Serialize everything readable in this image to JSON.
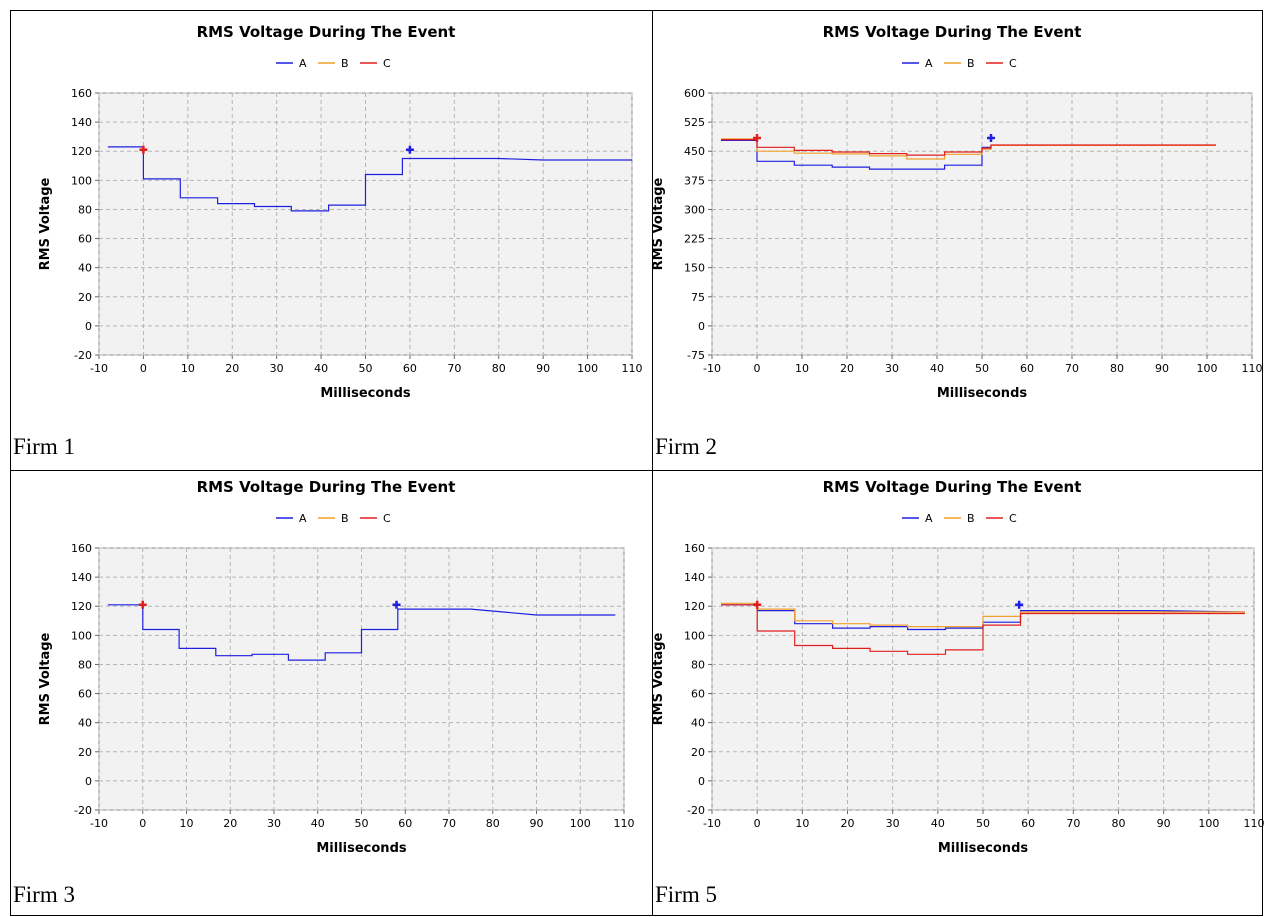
{
  "panels": [
    {
      "label": "Firm 1",
      "chart_data": {
        "type": "line",
        "title": "RMS Voltage During The Event",
        "xlabel": "Milliseconds",
        "ylabel": "RMS Voltage",
        "xlim": [
          -10,
          110
        ],
        "ylim": [
          -20,
          160
        ],
        "xticks": [
          -10,
          0,
          10,
          20,
          30,
          40,
          50,
          60,
          70,
          80,
          90,
          100,
          110
        ],
        "yticks": [
          -20,
          0,
          20,
          40,
          60,
          80,
          100,
          120,
          140,
          160
        ],
        "legend": [
          "A",
          "B",
          "C"
        ],
        "legend_colors": [
          "#1f1fe0",
          "#f2a12c",
          "#e01f1f"
        ],
        "grid": true,
        "legend_position": "top",
        "markers": [
          {
            "x": 0,
            "y": 121,
            "color": "#e01f1f"
          },
          {
            "x": 60,
            "y": 121,
            "color": "#1f1fe0"
          }
        ],
        "series": [
          {
            "name": "A",
            "color": "#1f1fe0",
            "points": [
              [
                -8,
                123
              ],
              [
                0,
                123
              ],
              [
                0,
                101
              ],
              [
                8.3,
                101
              ],
              [
                8.3,
                88
              ],
              [
                16.7,
                88
              ],
              [
                16.7,
                84
              ],
              [
                25,
                84
              ],
              [
                25,
                82
              ],
              [
                33.3,
                82
              ],
              [
                33.3,
                79
              ],
              [
                41.7,
                79
              ],
              [
                41.7,
                83
              ],
              [
                50,
                83
              ],
              [
                50,
                104
              ],
              [
                58.3,
                104
              ],
              [
                58.3,
                115
              ],
              [
                70,
                115
              ],
              [
                80,
                115
              ],
              [
                90,
                114
              ],
              [
                110,
                114
              ]
            ]
          }
        ]
      }
    },
    {
      "label": "Firm 2",
      "chart_data": {
        "type": "line",
        "title": "RMS Voltage During The Event",
        "xlabel": "Milliseconds",
        "ylabel": "RMS Voltage",
        "xlim": [
          -10,
          110
        ],
        "ylim": [
          -75,
          600
        ],
        "xticks": [
          -10,
          0,
          10,
          20,
          30,
          40,
          50,
          60,
          70,
          80,
          90,
          100,
          110
        ],
        "yticks": [
          -75,
          0,
          75,
          150,
          225,
          300,
          375,
          450,
          525,
          600
        ],
        "legend": [
          "A",
          "B",
          "C"
        ],
        "legend_colors": [
          "#1f1fe0",
          "#f2a12c",
          "#e01f1f"
        ],
        "grid": true,
        "legend_position": "top",
        "markers": [
          {
            "x": 0,
            "y": 484,
            "color": "#e01f1f"
          },
          {
            "x": 52,
            "y": 484,
            "color": "#1f1fe0"
          }
        ],
        "series": [
          {
            "name": "A",
            "color": "#1f1fe0",
            "points": [
              [
                -8,
                478
              ],
              [
                0,
                478
              ],
              [
                0,
                424
              ],
              [
                8.3,
                424
              ],
              [
                8.3,
                414
              ],
              [
                16.7,
                414
              ],
              [
                16.7,
                409
              ],
              [
                25,
                409
              ],
              [
                25,
                404
              ],
              [
                33.3,
                404
              ],
              [
                33.3,
                404
              ],
              [
                41.7,
                404
              ],
              [
                41.7,
                414
              ],
              [
                50,
                414
              ],
              [
                50,
                460
              ],
              [
                52,
                460
              ],
              [
                52,
                465
              ],
              [
                102,
                465
              ]
            ]
          },
          {
            "name": "B",
            "color": "#f2a12c",
            "points": [
              [
                -8,
                482
              ],
              [
                0,
                482
              ],
              [
                0,
                450
              ],
              [
                8.3,
                450
              ],
              [
                8.3,
                445
              ],
              [
                16.7,
                445
              ],
              [
                16.7,
                443
              ],
              [
                25,
                443
              ],
              [
                25,
                438
              ],
              [
                33.3,
                438
              ],
              [
                33.3,
                430
              ],
              [
                41.7,
                430
              ],
              [
                41.7,
                442
              ],
              [
                50,
                442
              ],
              [
                50,
                455
              ],
              [
                52,
                455
              ],
              [
                52,
                465
              ],
              [
                102,
                465
              ]
            ]
          },
          {
            "name": "C",
            "color": "#e01f1f",
            "points": [
              [
                -8,
                480
              ],
              [
                0,
                480
              ],
              [
                0,
                460
              ],
              [
                8.3,
                460
              ],
              [
                8.3,
                452
              ],
              [
                16.7,
                452
              ],
              [
                16.7,
                448
              ],
              [
                25,
                448
              ],
              [
                25,
                444
              ],
              [
                33.3,
                444
              ],
              [
                33.3,
                440
              ],
              [
                41.7,
                440
              ],
              [
                41.7,
                448
              ],
              [
                50,
                448
              ],
              [
                50,
                458
              ],
              [
                52,
                458
              ],
              [
                52,
                466
              ],
              [
                102,
                466
              ]
            ]
          }
        ]
      }
    },
    {
      "label": "Firm 3",
      "chart_data": {
        "type": "line",
        "title": "RMS Voltage During The Event",
        "xlabel": "Milliseconds",
        "ylabel": "RMS Voltage",
        "xlim": [
          -10,
          110
        ],
        "ylim": [
          -20,
          160
        ],
        "xticks": [
          -10,
          0,
          10,
          20,
          30,
          40,
          50,
          60,
          70,
          80,
          90,
          100,
          110
        ],
        "yticks": [
          -20,
          0,
          20,
          40,
          60,
          80,
          100,
          120,
          140,
          160
        ],
        "legend": [
          "A",
          "B",
          "C"
        ],
        "legend_colors": [
          "#1f1fe0",
          "#f2a12c",
          "#e01f1f"
        ],
        "grid": true,
        "legend_position": "top",
        "markers": [
          {
            "x": 0,
            "y": 121,
            "color": "#e01f1f"
          },
          {
            "x": 58,
            "y": 121,
            "color": "#1f1fe0"
          }
        ],
        "series": [
          {
            "name": "A",
            "color": "#1f1fe0",
            "points": [
              [
                -8,
                121
              ],
              [
                0,
                121
              ],
              [
                0,
                104
              ],
              [
                8.3,
                104
              ],
              [
                8.3,
                91
              ],
              [
                16.7,
                91
              ],
              [
                16.7,
                86
              ],
              [
                25,
                86
              ],
              [
                25,
                87
              ],
              [
                33.3,
                87
              ],
              [
                33.3,
                83
              ],
              [
                41.7,
                83
              ],
              [
                41.7,
                88
              ],
              [
                50,
                88
              ],
              [
                50,
                104
              ],
              [
                58.3,
                104
              ],
              [
                58.3,
                118
              ],
              [
                70,
                118
              ],
              [
                75,
                118
              ],
              [
                90,
                114
              ],
              [
                108,
                114
              ]
            ]
          }
        ]
      }
    },
    {
      "label": "Firm 5",
      "chart_data": {
        "type": "line",
        "title": "RMS Voltage During The Event",
        "xlabel": "Milliseconds",
        "ylabel": "RMS Voltage",
        "xlim": [
          -10,
          110
        ],
        "ylim": [
          -20,
          160
        ],
        "xticks": [
          -10,
          0,
          10,
          20,
          30,
          40,
          50,
          60,
          70,
          80,
          90,
          100,
          110
        ],
        "yticks": [
          -20,
          0,
          20,
          40,
          60,
          80,
          100,
          120,
          140,
          160
        ],
        "legend": [
          "A",
          "B",
          "C"
        ],
        "legend_colors": [
          "#1f1fe0",
          "#f2a12c",
          "#e01f1f"
        ],
        "grid": true,
        "legend_position": "top",
        "markers": [
          {
            "x": 0,
            "y": 121,
            "color": "#e01f1f"
          },
          {
            "x": 58,
            "y": 121,
            "color": "#1f1fe0"
          }
        ],
        "series": [
          {
            "name": "A",
            "color": "#1f1fe0",
            "points": [
              [
                -8,
                121
              ],
              [
                0,
                121
              ],
              [
                0,
                117
              ],
              [
                8.3,
                117
              ],
              [
                8.3,
                108
              ],
              [
                16.7,
                108
              ],
              [
                16.7,
                105
              ],
              [
                25,
                105
              ],
              [
                25,
                106
              ],
              [
                33.3,
                106
              ],
              [
                33.3,
                104
              ],
              [
                41.7,
                104
              ],
              [
                41.7,
                105
              ],
              [
                50,
                105
              ],
              [
                50,
                109
              ],
              [
                58.3,
                109
              ],
              [
                58.3,
                117
              ],
              [
                88,
                117
              ],
              [
                108,
                116
              ]
            ]
          },
          {
            "name": "B",
            "color": "#f2a12c",
            "points": [
              [
                -8,
                122
              ],
              [
                0,
                122
              ],
              [
                0,
                118
              ],
              [
                8.3,
                118
              ],
              [
                8.3,
                110
              ],
              [
                16.7,
                110
              ],
              [
                16.7,
                108
              ],
              [
                25,
                108
              ],
              [
                25,
                107
              ],
              [
                33.3,
                107
              ],
              [
                33.3,
                106
              ],
              [
                41.7,
                106
              ],
              [
                41.7,
                106
              ],
              [
                50,
                106
              ],
              [
                50,
                113
              ],
              [
                58.3,
                113
              ],
              [
                58.3,
                116
              ],
              [
                108,
                116
              ]
            ]
          },
          {
            "name": "C",
            "color": "#e01f1f",
            "points": [
              [
                -8,
                121
              ],
              [
                0,
                121
              ],
              [
                0,
                103
              ],
              [
                8.3,
                103
              ],
              [
                8.3,
                93
              ],
              [
                16.7,
                93
              ],
              [
                16.7,
                91
              ],
              [
                25,
                91
              ],
              [
                25,
                89
              ],
              [
                33.3,
                89
              ],
              [
                33.3,
                87
              ],
              [
                41.7,
                87
              ],
              [
                41.7,
                90
              ],
              [
                50,
                90
              ],
              [
                50,
                107
              ],
              [
                58.3,
                107
              ],
              [
                58.3,
                115
              ],
              [
                108,
                115
              ]
            ]
          }
        ]
      }
    }
  ]
}
